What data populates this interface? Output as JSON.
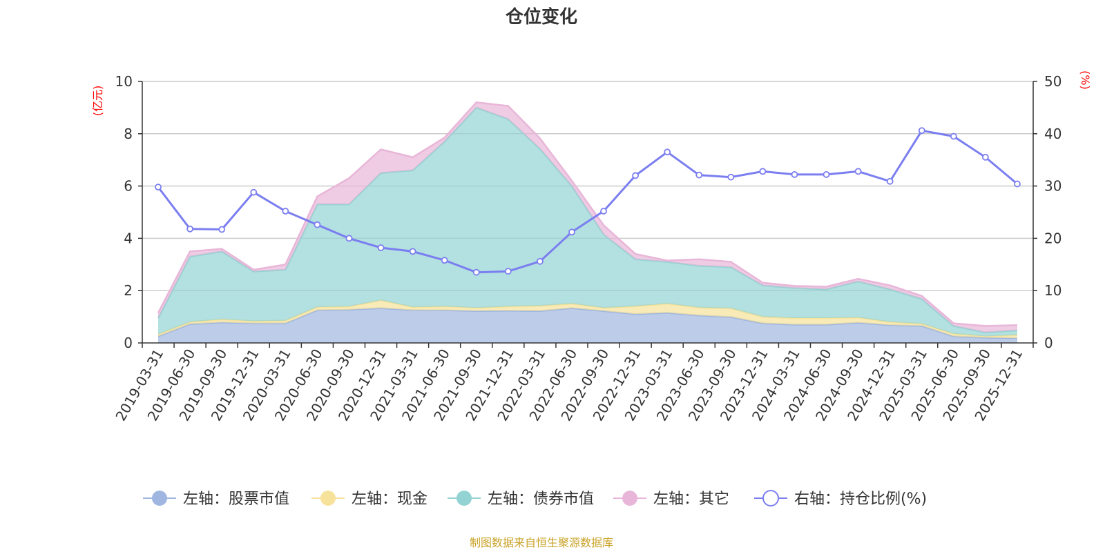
{
  "chart_data": {
    "type": "area",
    "title": "仓位变化",
    "left_axis_unit": "(亿元)",
    "right_axis_unit": "(%)",
    "left_ylim": [
      0,
      10
    ],
    "left_yticks": [
      0,
      2,
      4,
      6,
      8,
      10
    ],
    "right_ylim": [
      0,
      50
    ],
    "right_yticks": [
      0,
      10,
      20,
      30,
      40,
      50
    ],
    "grid": true,
    "legend_position": "bottom",
    "source_text": "制图数据来自恒生聚源数据库",
    "categories": [
      "2019-03-31",
      "2019-06-30",
      "2019-09-30",
      "2019-12-31",
      "2020-03-31",
      "2020-06-30",
      "2020-09-30",
      "2020-12-31",
      "2021-03-31",
      "2021-06-30",
      "2021-09-30",
      "2021-12-31",
      "2022-03-31",
      "2022-06-30",
      "2022-09-30",
      "2022-12-31",
      "2023-03-31",
      "2023-06-30",
      "2023-09-30",
      "2023-12-31",
      "2024-03-31",
      "2024-06-30",
      "2024-09-30",
      "2024-12-31",
      "2025-03-31",
      "2025-06-30",
      "2025-09-30",
      "2025-12-31"
    ],
    "stacked_series": [
      {
        "name": "左轴：股票市值",
        "axis": "left",
        "color": "#9fb6e0",
        "values": [
          0.25,
          0.72,
          0.78,
          0.75,
          0.75,
          1.25,
          1.27,
          1.33,
          1.25,
          1.25,
          1.22,
          1.23,
          1.22,
          1.33,
          1.22,
          1.1,
          1.15,
          1.05,
          0.99,
          0.75,
          0.7,
          0.7,
          0.77,
          0.68,
          0.65,
          0.25,
          0.2,
          0.18
        ]
      },
      {
        "name": "左轴：现金",
        "axis": "left",
        "color": "#f6e29a",
        "values": [
          0.08,
          0.08,
          0.12,
          0.08,
          0.1,
          0.12,
          0.12,
          0.3,
          0.12,
          0.14,
          0.12,
          0.16,
          0.2,
          0.17,
          0.12,
          0.3,
          0.35,
          0.3,
          0.33,
          0.25,
          0.25,
          0.25,
          0.2,
          0.12,
          0.08,
          0.1,
          0.05,
          0.12
        ]
      },
      {
        "name": "左轴：债券市值",
        "axis": "left",
        "color": "#93d3d3",
        "values": [
          0.62,
          2.5,
          2.6,
          1.9,
          1.95,
          3.93,
          3.91,
          4.87,
          5.23,
          6.31,
          7.66,
          7.17,
          6.0,
          4.5,
          2.81,
          1.8,
          1.6,
          1.6,
          1.58,
          1.2,
          1.15,
          1.1,
          1.38,
          1.25,
          0.95,
          0.3,
          0.15,
          0.18
        ]
      },
      {
        "name": "左轴：其它",
        "axis": "left",
        "color": "#e8b6d8",
        "values": [
          0.2,
          0.2,
          0.1,
          0.07,
          0.2,
          0.3,
          1.0,
          0.9,
          0.5,
          0.15,
          0.2,
          0.5,
          0.4,
          0.2,
          0.35,
          0.2,
          0.05,
          0.25,
          0.2,
          0.1,
          0.08,
          0.1,
          0.1,
          0.15,
          0.12,
          0.1,
          0.25,
          0.2
        ]
      }
    ],
    "line_series": {
      "name": "右轴：持仓比例(%)",
      "axis": "right",
      "color": "#7b7ef0",
      "values": [
        29.8,
        21.8,
        21.7,
        28.8,
        25.2,
        22.6,
        20.0,
        18.2,
        17.5,
        15.8,
        13.5,
        13.7,
        15.6,
        21.2,
        25.2,
        32.0,
        36.5,
        32.1,
        31.7,
        32.8,
        32.2,
        32.2,
        32.8,
        30.9,
        40.6,
        39.5,
        35.5,
        30.4
      ]
    }
  }
}
